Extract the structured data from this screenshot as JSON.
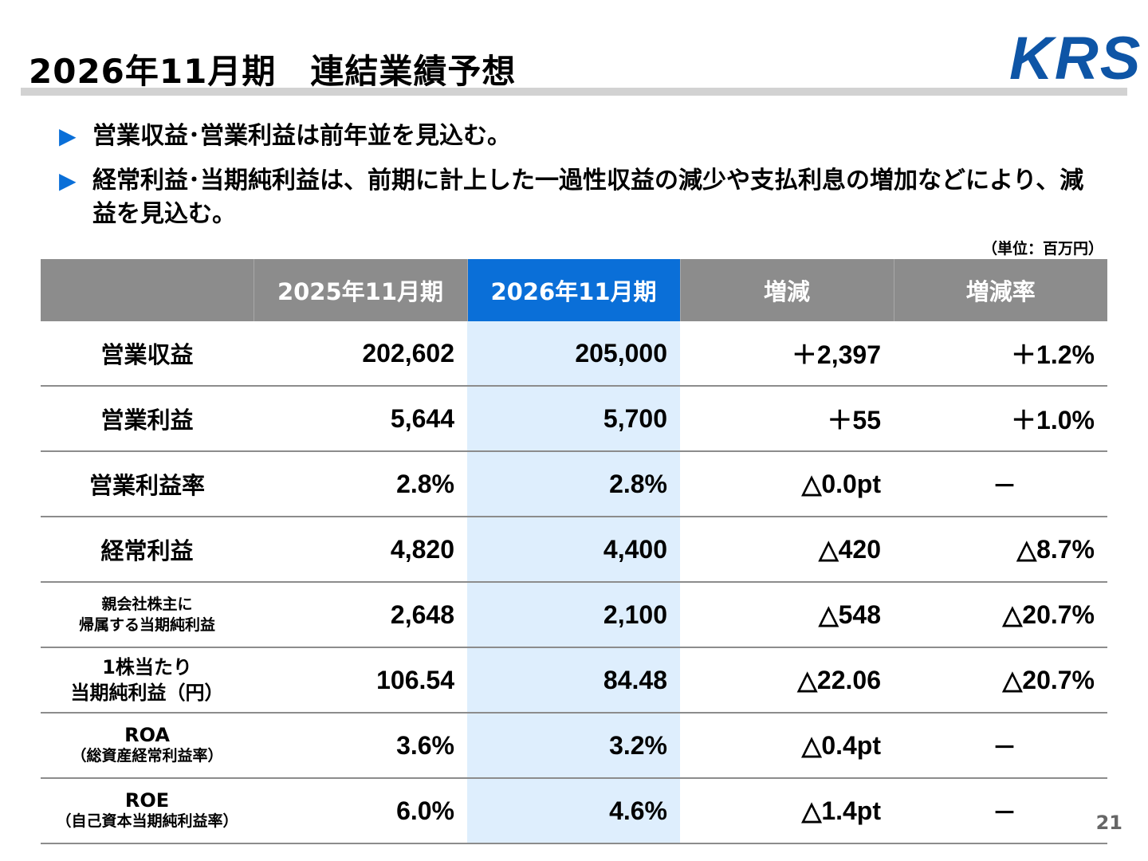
{
  "header": {
    "title": "2026年11月期　連結業績予想",
    "logo_text": "KRS"
  },
  "bullets": [
    "営業収益･営業利益は前年並を見込む。",
    "経常利益･当期純利益は、前期に計上した一過性収益の減少や支払利息の増加などにより、減益を見込む。"
  ],
  "bullet_icon": "triangle-right-icon",
  "unit": "（単位：百万円）",
  "table": {
    "headers": [
      "",
      "2025年11月期",
      "2026年11月期",
      "増減",
      "増減率"
    ],
    "rows": [
      {
        "label": "営業収益",
        "prev": "202,602",
        "curr": "205,000",
        "diff": "＋2,397",
        "rate": "＋1.2%"
      },
      {
        "label": "営業利益",
        "prev": "5,644",
        "curr": "5,700",
        "diff": "＋55",
        "rate": "＋1.0%"
      },
      {
        "label": "営業利益率",
        "prev": "2.8%",
        "curr": "2.8%",
        "diff": "△0.0pt",
        "rate": "－"
      },
      {
        "label": "経常利益",
        "prev": "4,820",
        "curr": "4,400",
        "diff": "△420",
        "rate": "△8.7%"
      },
      {
        "label": "親会社株主に",
        "label2": "帰属する当期純利益",
        "prev": "2,648",
        "curr": "2,100",
        "diff": "△548",
        "rate": "△20.7%"
      },
      {
        "label": "1株当たり",
        "label2": "当期純利益（円）",
        "prev": "106.54",
        "curr": "84.48",
        "diff": "△22.06",
        "rate": "△20.7%"
      },
      {
        "label": "ROA",
        "label2": "（総資産経常利益率）",
        "prev": "3.6%",
        "curr": "3.2%",
        "diff": "△0.4pt",
        "rate": "－"
      },
      {
        "label": "ROE",
        "label2": "（自己資本当期純利益率）",
        "prev": "6.0%",
        "curr": "4.6%",
        "diff": "△1.4pt",
        "rate": "－"
      }
    ]
  },
  "colors": {
    "accent": "#0a6fd8",
    "header_gray": "#8c8c8c",
    "highlight_column": "#deeefd",
    "logo": "#0e55a6"
  },
  "page_number": "21"
}
